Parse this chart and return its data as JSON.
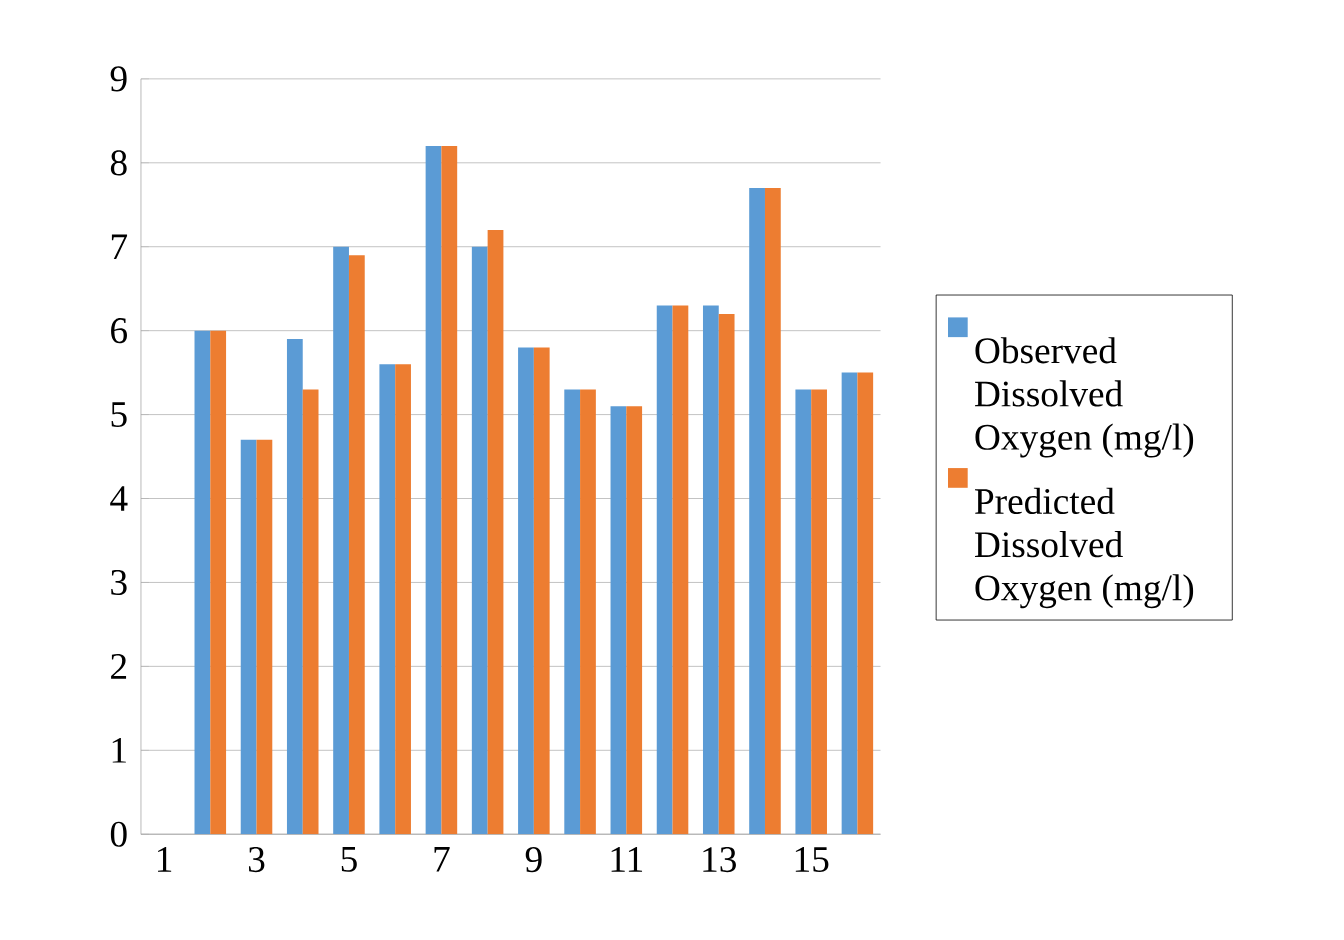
{
  "chart_data": {
    "type": "bar",
    "categories": [
      "1",
      null,
      "3",
      null,
      "5",
      null,
      "7",
      null,
      "9",
      null,
      "11",
      null,
      "13",
      null,
      "15",
      null
    ],
    "series": [
      {
        "name": "Observed Dissolved Oxygen (mg/l)",
        "color": "#5b9bd5",
        "values": [
          null,
          6.0,
          4.7,
          5.9,
          7.0,
          5.6,
          8.2,
          7.0,
          5.8,
          5.3,
          5.1,
          6.3,
          6.3,
          7.7,
          5.3,
          5.5
        ]
      },
      {
        "name": "Predicted Dissolved Oxygen (mg/l)",
        "color": "#ed7d31",
        "values": [
          null,
          6.0,
          4.7,
          5.3,
          6.9,
          5.6,
          8.2,
          7.2,
          5.8,
          5.3,
          5.1,
          6.3,
          6.2,
          7.7,
          5.3,
          5.5
        ]
      }
    ],
    "ylim": [
      0,
      9
    ],
    "yticks": [
      0,
      1,
      2,
      3,
      4,
      5,
      6,
      7,
      8,
      9
    ],
    "grid": "y",
    "legend": "right"
  }
}
